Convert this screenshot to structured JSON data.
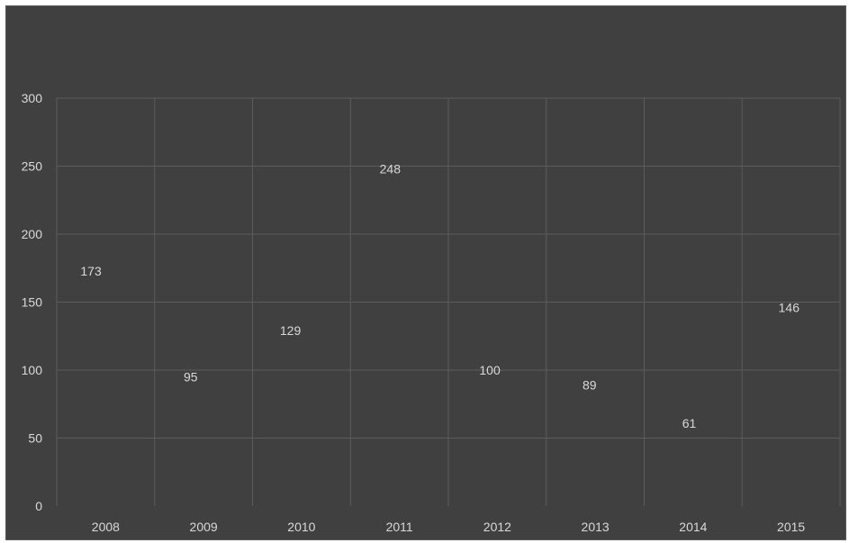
{
  "chart_data": {
    "type": "scatter",
    "categories": [
      "2008",
      "2009",
      "2010",
      "2011",
      "2012",
      "2013",
      "2014",
      "2015"
    ],
    "values": [
      173,
      95,
      129,
      248,
      100,
      89,
      61,
      146
    ],
    "y_ticks": [
      "0",
      "50",
      "100",
      "150",
      "200",
      "250",
      "300"
    ],
    "ylim": [
      0,
      300
    ],
    "grid": true,
    "legend": "none",
    "colors": {
      "background": "#404040",
      "gridline": "#5c5c5c",
      "text": "#d9d9d9"
    }
  }
}
